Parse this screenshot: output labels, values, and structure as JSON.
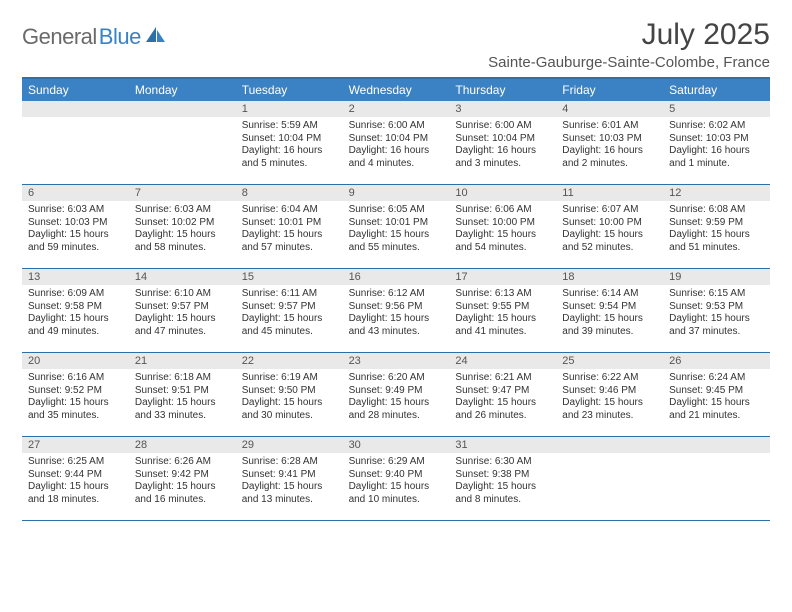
{
  "logo": {
    "text_gray": "General",
    "text_blue": "Blue"
  },
  "title": "July 2025",
  "location": "Sainte-Gauburge-Sainte-Colombe, France",
  "colors": {
    "header_bg": "#3b82c4",
    "header_border": "#2d6fa8",
    "daynum_bg": "#e9e9e9",
    "text": "#333333",
    "title_text": "#444444"
  },
  "typography": {
    "title_size_pt": 22,
    "location_size_pt": 11,
    "dayhead_size_pt": 9,
    "daynum_size_pt": 8,
    "body_size_pt": 7.5
  },
  "day_headers": [
    "Sunday",
    "Monday",
    "Tuesday",
    "Wednesday",
    "Thursday",
    "Friday",
    "Saturday"
  ],
  "weeks": [
    [
      {
        "n": "",
        "lines": []
      },
      {
        "n": "",
        "lines": []
      },
      {
        "n": "1",
        "lines": [
          "Sunrise: 5:59 AM",
          "Sunset: 10:04 PM",
          "Daylight: 16 hours",
          "and 5 minutes."
        ]
      },
      {
        "n": "2",
        "lines": [
          "Sunrise: 6:00 AM",
          "Sunset: 10:04 PM",
          "Daylight: 16 hours",
          "and 4 minutes."
        ]
      },
      {
        "n": "3",
        "lines": [
          "Sunrise: 6:00 AM",
          "Sunset: 10:04 PM",
          "Daylight: 16 hours",
          "and 3 minutes."
        ]
      },
      {
        "n": "4",
        "lines": [
          "Sunrise: 6:01 AM",
          "Sunset: 10:03 PM",
          "Daylight: 16 hours",
          "and 2 minutes."
        ]
      },
      {
        "n": "5",
        "lines": [
          "Sunrise: 6:02 AM",
          "Sunset: 10:03 PM",
          "Daylight: 16 hours",
          "and 1 minute."
        ]
      }
    ],
    [
      {
        "n": "6",
        "lines": [
          "Sunrise: 6:03 AM",
          "Sunset: 10:03 PM",
          "Daylight: 15 hours",
          "and 59 minutes."
        ]
      },
      {
        "n": "7",
        "lines": [
          "Sunrise: 6:03 AM",
          "Sunset: 10:02 PM",
          "Daylight: 15 hours",
          "and 58 minutes."
        ]
      },
      {
        "n": "8",
        "lines": [
          "Sunrise: 6:04 AM",
          "Sunset: 10:01 PM",
          "Daylight: 15 hours",
          "and 57 minutes."
        ]
      },
      {
        "n": "9",
        "lines": [
          "Sunrise: 6:05 AM",
          "Sunset: 10:01 PM",
          "Daylight: 15 hours",
          "and 55 minutes."
        ]
      },
      {
        "n": "10",
        "lines": [
          "Sunrise: 6:06 AM",
          "Sunset: 10:00 PM",
          "Daylight: 15 hours",
          "and 54 minutes."
        ]
      },
      {
        "n": "11",
        "lines": [
          "Sunrise: 6:07 AM",
          "Sunset: 10:00 PM",
          "Daylight: 15 hours",
          "and 52 minutes."
        ]
      },
      {
        "n": "12",
        "lines": [
          "Sunrise: 6:08 AM",
          "Sunset: 9:59 PM",
          "Daylight: 15 hours",
          "and 51 minutes."
        ]
      }
    ],
    [
      {
        "n": "13",
        "lines": [
          "Sunrise: 6:09 AM",
          "Sunset: 9:58 PM",
          "Daylight: 15 hours",
          "and 49 minutes."
        ]
      },
      {
        "n": "14",
        "lines": [
          "Sunrise: 6:10 AM",
          "Sunset: 9:57 PM",
          "Daylight: 15 hours",
          "and 47 minutes."
        ]
      },
      {
        "n": "15",
        "lines": [
          "Sunrise: 6:11 AM",
          "Sunset: 9:57 PM",
          "Daylight: 15 hours",
          "and 45 minutes."
        ]
      },
      {
        "n": "16",
        "lines": [
          "Sunrise: 6:12 AM",
          "Sunset: 9:56 PM",
          "Daylight: 15 hours",
          "and 43 minutes."
        ]
      },
      {
        "n": "17",
        "lines": [
          "Sunrise: 6:13 AM",
          "Sunset: 9:55 PM",
          "Daylight: 15 hours",
          "and 41 minutes."
        ]
      },
      {
        "n": "18",
        "lines": [
          "Sunrise: 6:14 AM",
          "Sunset: 9:54 PM",
          "Daylight: 15 hours",
          "and 39 minutes."
        ]
      },
      {
        "n": "19",
        "lines": [
          "Sunrise: 6:15 AM",
          "Sunset: 9:53 PM",
          "Daylight: 15 hours",
          "and 37 minutes."
        ]
      }
    ],
    [
      {
        "n": "20",
        "lines": [
          "Sunrise: 6:16 AM",
          "Sunset: 9:52 PM",
          "Daylight: 15 hours",
          "and 35 minutes."
        ]
      },
      {
        "n": "21",
        "lines": [
          "Sunrise: 6:18 AM",
          "Sunset: 9:51 PM",
          "Daylight: 15 hours",
          "and 33 minutes."
        ]
      },
      {
        "n": "22",
        "lines": [
          "Sunrise: 6:19 AM",
          "Sunset: 9:50 PM",
          "Daylight: 15 hours",
          "and 30 minutes."
        ]
      },
      {
        "n": "23",
        "lines": [
          "Sunrise: 6:20 AM",
          "Sunset: 9:49 PM",
          "Daylight: 15 hours",
          "and 28 minutes."
        ]
      },
      {
        "n": "24",
        "lines": [
          "Sunrise: 6:21 AM",
          "Sunset: 9:47 PM",
          "Daylight: 15 hours",
          "and 26 minutes."
        ]
      },
      {
        "n": "25",
        "lines": [
          "Sunrise: 6:22 AM",
          "Sunset: 9:46 PM",
          "Daylight: 15 hours",
          "and 23 minutes."
        ]
      },
      {
        "n": "26",
        "lines": [
          "Sunrise: 6:24 AM",
          "Sunset: 9:45 PM",
          "Daylight: 15 hours",
          "and 21 minutes."
        ]
      }
    ],
    [
      {
        "n": "27",
        "lines": [
          "Sunrise: 6:25 AM",
          "Sunset: 9:44 PM",
          "Daylight: 15 hours",
          "and 18 minutes."
        ]
      },
      {
        "n": "28",
        "lines": [
          "Sunrise: 6:26 AM",
          "Sunset: 9:42 PM",
          "Daylight: 15 hours",
          "and 16 minutes."
        ]
      },
      {
        "n": "29",
        "lines": [
          "Sunrise: 6:28 AM",
          "Sunset: 9:41 PM",
          "Daylight: 15 hours",
          "and 13 minutes."
        ]
      },
      {
        "n": "30",
        "lines": [
          "Sunrise: 6:29 AM",
          "Sunset: 9:40 PM",
          "Daylight: 15 hours",
          "and 10 minutes."
        ]
      },
      {
        "n": "31",
        "lines": [
          "Sunrise: 6:30 AM",
          "Sunset: 9:38 PM",
          "Daylight: 15 hours",
          "and 8 minutes."
        ]
      },
      {
        "n": "",
        "lines": []
      },
      {
        "n": "",
        "lines": []
      }
    ]
  ]
}
